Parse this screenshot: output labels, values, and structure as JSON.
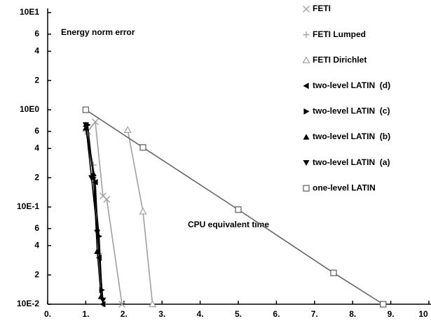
{
  "chart_data": {
    "type": "line",
    "log_y": true,
    "annotations": [
      "Energy norm error",
      "CPU equivalent time"
    ],
    "xlim": [
      0,
      10
    ],
    "ylim": [
      0.01,
      10
    ],
    "xticks": [
      {
        "value": 0,
        "label": "0."
      },
      {
        "value": 1,
        "label": "1."
      },
      {
        "value": 2,
        "label": "2."
      },
      {
        "value": 3,
        "label": "3."
      },
      {
        "value": 4,
        "label": "4."
      },
      {
        "value": 5,
        "label": "5."
      },
      {
        "value": 6,
        "label": "6."
      },
      {
        "value": 7,
        "label": "7."
      },
      {
        "value": 8,
        "label": "8."
      },
      {
        "value": 9,
        "label": "9."
      },
      10
    ],
    "yticks": [
      {
        "value": 10,
        "label": "10E1"
      },
      6,
      4,
      2,
      {
        "value": 1,
        "label": "10E0"
      },
      {
        "value": 0.6,
        "label": "6"
      },
      {
        "value": 0.4,
        "label": "4"
      },
      {
        "value": 0.2,
        "label": "2"
      },
      {
        "value": 0.1,
        "label": "10E-1"
      },
      {
        "value": 0.06,
        "label": "6"
      },
      {
        "value": 0.04,
        "label": "4"
      },
      {
        "value": 0.02,
        "label": "2"
      },
      {
        "value": 0.01,
        "label": "10E-2"
      }
    ],
    "legend": "top-right",
    "series": [
      {
        "name": "FETI",
        "color": "#a0a0a0",
        "marker": "x",
        "x": [
          1.05,
          1.25,
          1.45,
          1.55,
          1.95
        ],
        "values": [
          0.6,
          0.75,
          0.13,
          0.12,
          0.01
        ]
      },
      {
        "name": "FETI Lumped",
        "color": "#a0a0a0",
        "marker": "plus",
        "x": [
          1.0,
          1.2,
          1.35,
          1.45
        ],
        "values": [
          0.6,
          0.27,
          0.033,
          0.01
        ]
      },
      {
        "name": "FETI Dirichlet",
        "color": "#a0a0a0",
        "marker": "triangle-open",
        "x": [
          2.1,
          2.5,
          2.75
        ],
        "values": [
          0.62,
          0.09,
          0.01
        ]
      },
      {
        "name": "two-level LATIN  (d)",
        "color": "#000000",
        "marker": "triangle-left",
        "x": [
          1.0,
          1.25,
          1.35,
          1.45
        ],
        "values": [
          0.68,
          0.18,
          0.03,
          0.01
        ]
      },
      {
        "name": "two-level LATIN  (c)",
        "color": "#000000",
        "marker": "triangle-right",
        "x": [
          1.05,
          1.2,
          1.35,
          1.42
        ],
        "values": [
          0.7,
          0.2,
          0.05,
          0.014
        ]
      },
      {
        "name": "two-level LATIN  (b)",
        "color": "#000000",
        "marker": "triangle-up",
        "x": [
          1.0,
          1.2,
          1.3,
          1.4
        ],
        "values": [
          0.65,
          0.22,
          0.035,
          0.012
        ]
      },
      {
        "name": "two-level LATIN  (a)",
        "color": "#000000",
        "marker": "triangle-down",
        "x": [
          1.0,
          1.15,
          1.3,
          1.45
        ],
        "values": [
          0.7,
          0.2,
          0.055,
          0.011
        ]
      },
      {
        "name": "one-level LATIN",
        "color": "#666666",
        "marker": "square-open",
        "x": [
          1.0,
          2.5,
          5.0,
          7.5,
          8.8
        ],
        "values": [
          1.0,
          0.41,
          0.094,
          0.021,
          0.01
        ]
      }
    ]
  }
}
